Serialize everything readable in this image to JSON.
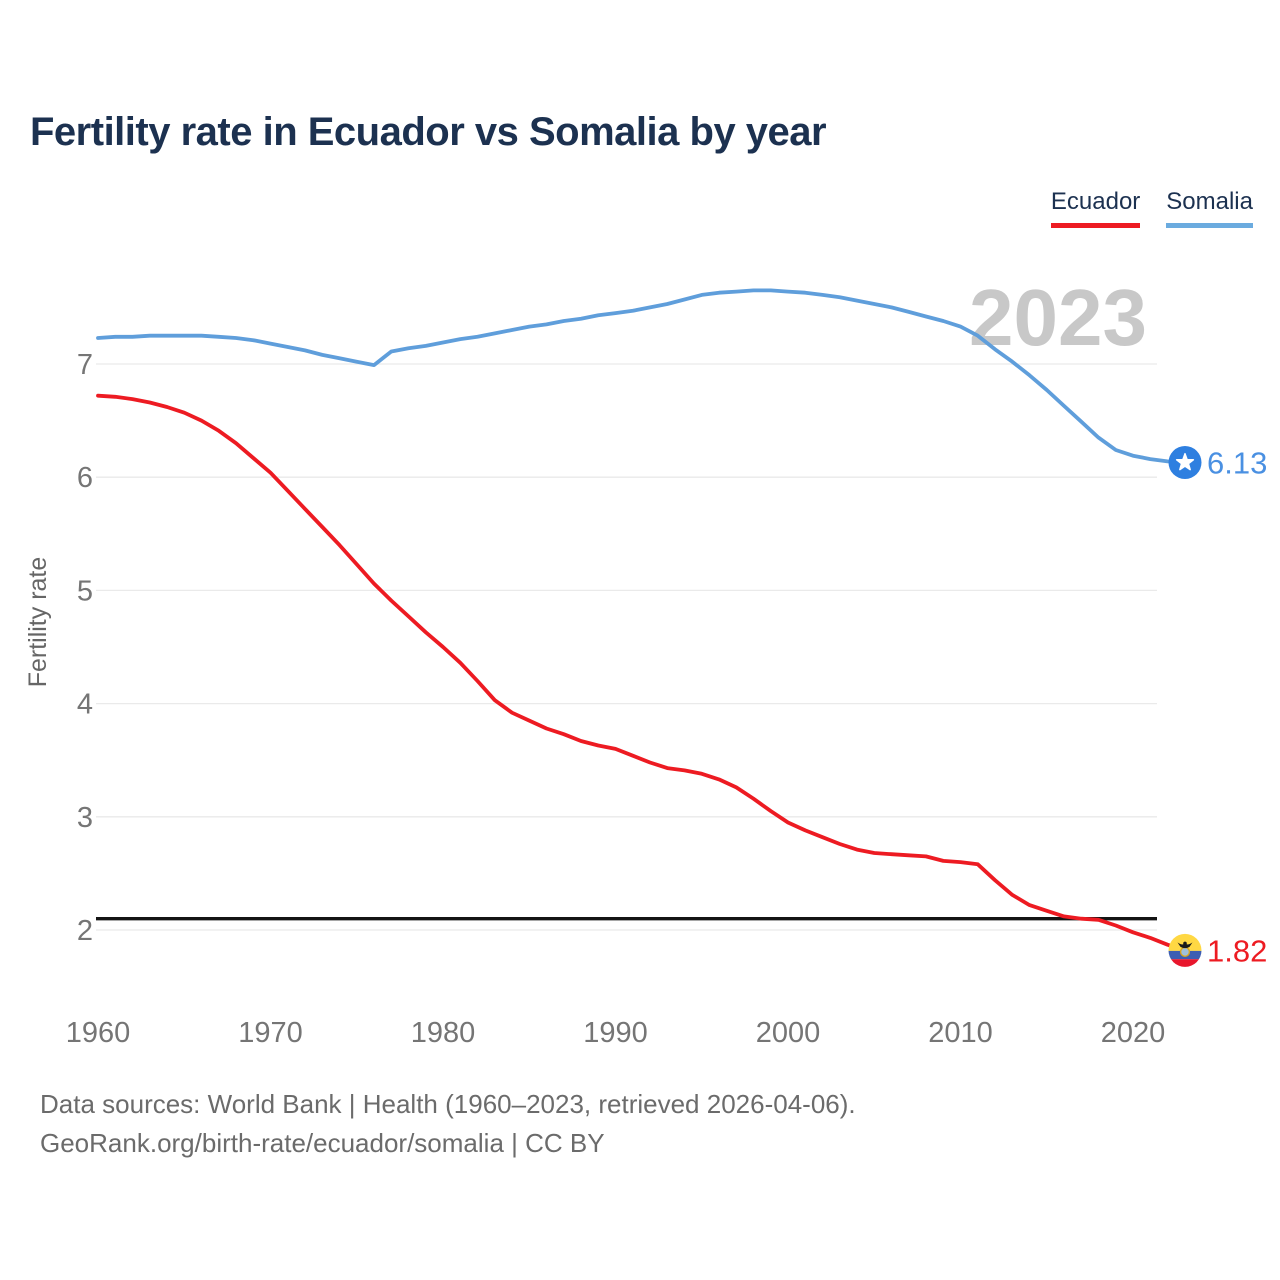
{
  "header": {
    "title": "Fertility rate in Ecuador vs Somalia by year"
  },
  "legend": {
    "items": [
      {
        "label": "Ecuador",
        "color": "#ed1b22"
      },
      {
        "label": "Somalia",
        "color": "#6babdf"
      }
    ]
  },
  "footer": {
    "line1": "Data sources: World Bank | Health (1960–2023, retrieved 2026-04-06).",
    "line2": "GeoRank.org/birth-rate/ecuador/somalia | CC BY"
  },
  "chart_data": {
    "type": "line",
    "title": "Fertility rate in Ecuador vs Somalia by year",
    "xlabel": "",
    "ylabel": "Fertility rate",
    "x": [
      1960,
      1961,
      1962,
      1963,
      1964,
      1965,
      1966,
      1967,
      1968,
      1969,
      1970,
      1971,
      1972,
      1973,
      1974,
      1975,
      1976,
      1977,
      1978,
      1979,
      1980,
      1981,
      1982,
      1983,
      1984,
      1985,
      1986,
      1987,
      1988,
      1989,
      1990,
      1991,
      1992,
      1993,
      1994,
      1995,
      1996,
      1997,
      1998,
      1999,
      2000,
      2001,
      2002,
      2003,
      2004,
      2005,
      2006,
      2007,
      2008,
      2009,
      2010,
      2011,
      2012,
      2013,
      2014,
      2015,
      2016,
      2017,
      2018,
      2019,
      2020,
      2021,
      2022,
      2023
    ],
    "xticks": [
      1960,
      1970,
      1980,
      1990,
      2000,
      2010,
      2020
    ],
    "yticks": [
      2,
      3,
      4,
      5,
      6,
      7
    ],
    "ylim": [
      1.5,
      8.0
    ],
    "grid": "horizontal",
    "legend_position": "top-right",
    "series": [
      {
        "name": "Somalia",
        "color": "#5f9edb",
        "label_color": "#4a90e2",
        "end_label": "6.13",
        "end_value": 6.13,
        "icon": "somalia-flag-icon",
        "icon_colors": {
          "bg": "#2e7fe0",
          "star": "#ffffff"
        },
        "values": [
          7.23,
          7.24,
          7.24,
          7.25,
          7.25,
          7.25,
          7.25,
          7.24,
          7.23,
          7.21,
          7.18,
          7.15,
          7.12,
          7.08,
          7.05,
          7.02,
          6.99,
          7.11,
          7.14,
          7.16,
          7.19,
          7.22,
          7.24,
          7.27,
          7.3,
          7.33,
          7.35,
          7.38,
          7.4,
          7.43,
          7.45,
          7.47,
          7.5,
          7.53,
          7.57,
          7.61,
          7.63,
          7.64,
          7.65,
          7.65,
          7.64,
          7.63,
          7.61,
          7.59,
          7.56,
          7.53,
          7.5,
          7.46,
          7.42,
          7.38,
          7.33,
          7.25,
          7.13,
          7.02,
          6.9,
          6.77,
          6.63,
          6.49,
          6.35,
          6.24,
          6.19,
          6.16,
          6.14,
          6.13
        ]
      },
      {
        "name": "Ecuador",
        "color": "#ed1b22",
        "label_color": "#ed1b22",
        "end_label": "1.82",
        "end_value": 1.82,
        "icon": "ecuador-flag-icon",
        "icon_colors": {
          "yellow": "#ffd843",
          "blue": "#3d5eb3",
          "red": "#e8162c",
          "crest": "#1a1a1a",
          "emblem": "#9fc0dd",
          "ring": "#d9a520"
        },
        "values": [
          6.72,
          6.71,
          6.69,
          6.66,
          6.62,
          6.57,
          6.5,
          6.41,
          6.3,
          6.17,
          6.04,
          5.88,
          5.72,
          5.56,
          5.4,
          5.23,
          5.06,
          4.91,
          4.77,
          4.63,
          4.5,
          4.36,
          4.2,
          4.03,
          3.92,
          3.85,
          3.78,
          3.73,
          3.67,
          3.63,
          3.6,
          3.54,
          3.48,
          3.43,
          3.41,
          3.38,
          3.33,
          3.26,
          3.16,
          3.05,
          2.95,
          2.88,
          2.82,
          2.76,
          2.71,
          2.68,
          2.67,
          2.66,
          2.65,
          2.61,
          2.6,
          2.58,
          2.44,
          2.31,
          2.22,
          2.17,
          2.12,
          2.1,
          2.09,
          2.04,
          1.98,
          1.93,
          1.87,
          1.82
        ]
      }
    ],
    "annotations": {
      "watermark": "2023",
      "threshold_line": {
        "value": 2.1,
        "color": "#141414"
      }
    }
  }
}
